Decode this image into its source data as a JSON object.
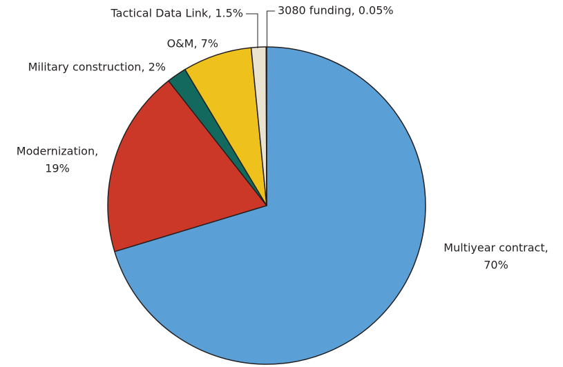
{
  "chart_data": {
    "type": "pie",
    "categories": [
      "Multiyear contract",
      "Modernization",
      "Military construction",
      "O&M",
      "Tactical Data Link",
      "3080 funding"
    ],
    "values": [
      70,
      19,
      2,
      7,
      1.5,
      0.05
    ],
    "labels": [
      [
        "Multiyear contract,",
        "70%"
      ],
      [
        "Modernization,",
        "19%"
      ],
      [
        "Military construction, 2%"
      ],
      [
        "O&M, 7%"
      ],
      [
        "Tactical Data Link, 1.5%"
      ],
      [
        "3080 funding, 0.05%"
      ]
    ],
    "colors": [
      "#5a9fd5",
      "#cc3828",
      "#13695e",
      "#efc11d",
      "#e9e3d0",
      "#3b1b12"
    ]
  }
}
